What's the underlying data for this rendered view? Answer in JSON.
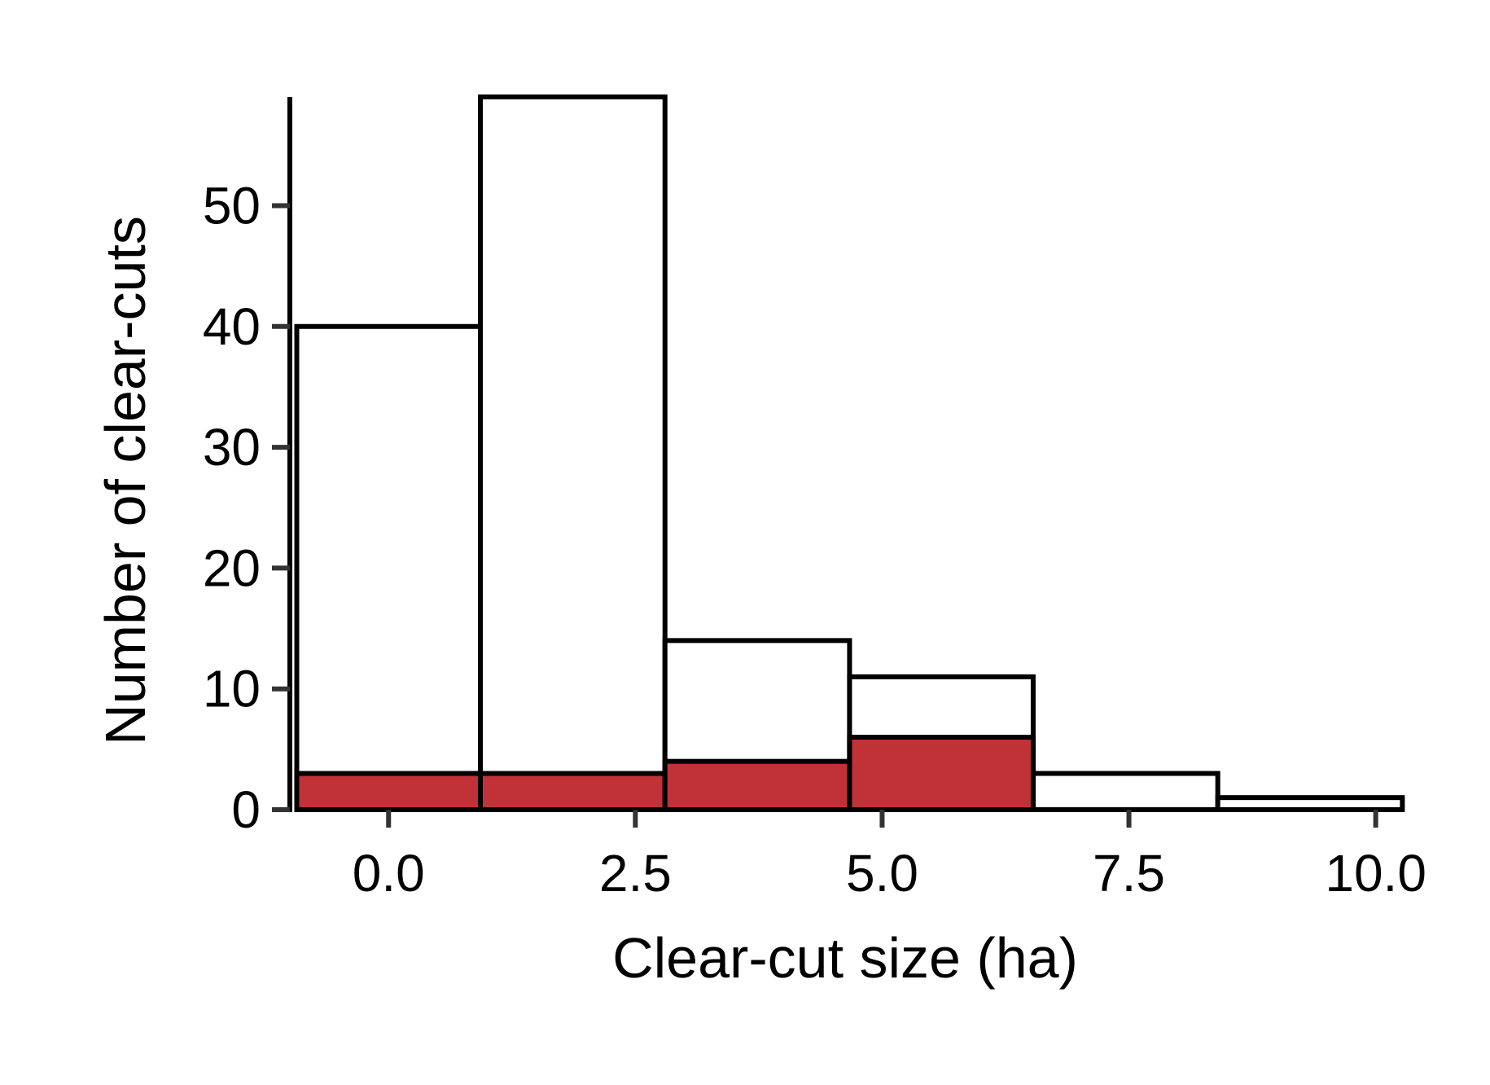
{
  "chart_data": {
    "type": "bar",
    "title": "",
    "xlabel": "Clear-cut size (ha)",
    "ylabel": "Number of clear-cuts",
    "xlim": [
      -1.0,
      10.3
    ],
    "ylim": [
      0,
      59
    ],
    "bin_edges": [
      -0.93,
      0.93,
      2.8,
      4.67,
      6.53,
      8.4,
      10.27
    ],
    "xticks": [
      "0.0",
      "2.5",
      "5.0",
      "7.5",
      "10.0"
    ],
    "xtick_values": [
      0.0,
      2.5,
      5.0,
      7.5,
      10.0
    ],
    "yticks": [
      "0",
      "10",
      "20",
      "30",
      "40",
      "50"
    ],
    "ytick_values": [
      0,
      10,
      20,
      30,
      40,
      50
    ],
    "grid": false,
    "legend": "none",
    "series": [
      {
        "values": [
          40,
          59,
          14,
          11,
          3,
          1
        ],
        "color": "#ffffff"
      },
      {
        "values": [
          3,
          3,
          4,
          6,
          0,
          0
        ],
        "color": "#c03237"
      }
    ]
  }
}
